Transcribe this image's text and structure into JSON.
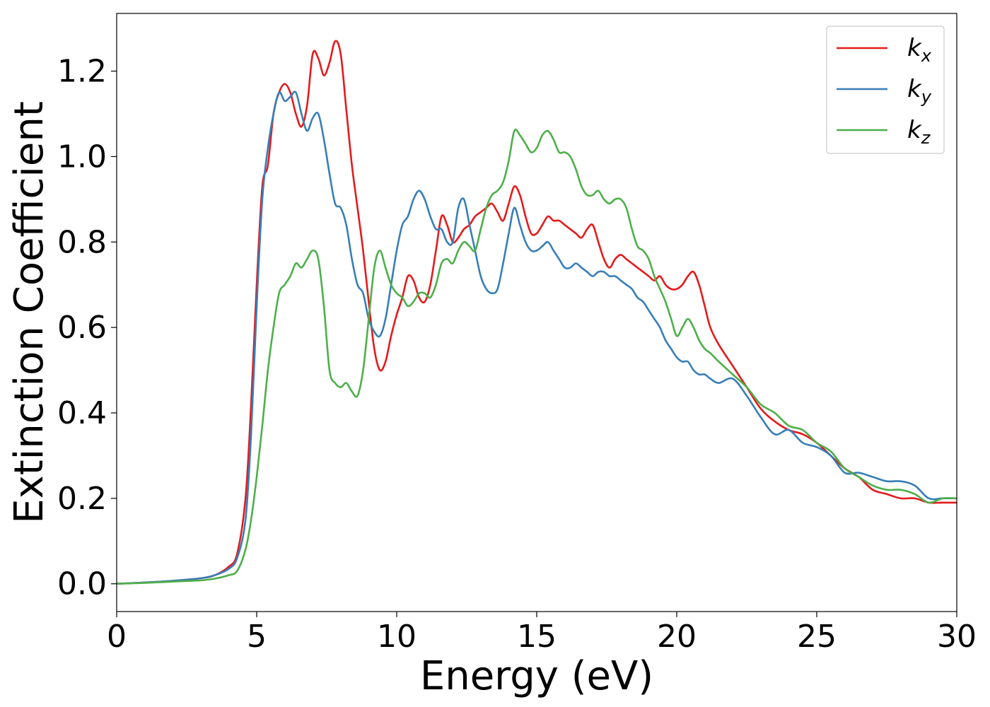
{
  "chart_data": {
    "type": "line",
    "title": "",
    "xlabel": "Energy (eV)",
    "ylabel": "Extinction Coefficient",
    "xlim": [
      0,
      30
    ],
    "ylim": [
      -0.065,
      1.335
    ],
    "xticks": [
      0,
      5,
      10,
      15,
      20,
      25,
      30
    ],
    "yticks": [
      0.0,
      0.2,
      0.4,
      0.6,
      0.8,
      1.0,
      1.2
    ],
    "xtick_labels": [
      "0",
      "5",
      "10",
      "15",
      "20",
      "25",
      "30"
    ],
    "ytick_labels": [
      "0.0",
      "0.2",
      "0.4",
      "0.6",
      "0.8",
      "1.0",
      "1.2"
    ],
    "grid": false,
    "legend_position": "top-right",
    "series": [
      {
        "name_base": "k",
        "name_sub": "x",
        "color": "#e41a1c",
        "x": [
          0,
          1,
          2,
          3,
          3.5,
          4,
          4.3,
          4.6,
          4.8,
          5,
          5.2,
          5.4,
          5.6,
          5.8,
          6,
          6.2,
          6.4,
          6.6,
          6.8,
          7,
          7.2,
          7.4,
          7.6,
          7.8,
          8,
          8.2,
          8.4,
          8.6,
          8.8,
          9,
          9.2,
          9.4,
          9.6,
          9.8,
          10,
          10.2,
          10.4,
          10.6,
          10.8,
          11,
          11.2,
          11.4,
          11.6,
          11.8,
          12,
          12.2,
          12.4,
          12.6,
          12.8,
          13,
          13.2,
          13.4,
          13.6,
          13.8,
          14,
          14.2,
          14.4,
          14.6,
          14.8,
          15,
          15.2,
          15.4,
          15.6,
          15.8,
          16,
          16.2,
          16.4,
          16.6,
          16.8,
          17,
          17.2,
          17.4,
          17.6,
          17.8,
          18,
          18.2,
          18.4,
          18.6,
          18.8,
          19,
          19.2,
          19.4,
          19.6,
          19.8,
          20,
          20.2,
          20.4,
          20.6,
          20.8,
          21,
          21.2,
          21.5,
          22,
          22.5,
          23,
          23.5,
          24,
          24.5,
          25,
          25.5,
          26,
          26.5,
          27,
          27.5,
          28,
          28.5,
          29,
          29.5,
          30
        ],
        "y": [
          0.0,
          0.003,
          0.007,
          0.013,
          0.02,
          0.04,
          0.07,
          0.2,
          0.42,
          0.7,
          0.93,
          0.98,
          1.1,
          1.15,
          1.17,
          1.15,
          1.1,
          1.07,
          1.12,
          1.24,
          1.23,
          1.19,
          1.22,
          1.27,
          1.24,
          1.11,
          0.98,
          0.88,
          0.78,
          0.66,
          0.55,
          0.5,
          0.52,
          0.58,
          0.63,
          0.67,
          0.72,
          0.71,
          0.67,
          0.66,
          0.7,
          0.78,
          0.86,
          0.84,
          0.8,
          0.81,
          0.83,
          0.84,
          0.86,
          0.87,
          0.88,
          0.89,
          0.87,
          0.85,
          0.89,
          0.93,
          0.91,
          0.86,
          0.82,
          0.82,
          0.84,
          0.86,
          0.85,
          0.85,
          0.84,
          0.83,
          0.82,
          0.81,
          0.83,
          0.84,
          0.8,
          0.76,
          0.74,
          0.76,
          0.77,
          0.76,
          0.75,
          0.74,
          0.73,
          0.72,
          0.71,
          0.72,
          0.7,
          0.69,
          0.69,
          0.7,
          0.72,
          0.73,
          0.7,
          0.65,
          0.6,
          0.56,
          0.51,
          0.46,
          0.41,
          0.38,
          0.36,
          0.35,
          0.33,
          0.3,
          0.27,
          0.25,
          0.22,
          0.21,
          0.2,
          0.2,
          0.19,
          0.19,
          0.19
        ]
      },
      {
        "name_base": "k",
        "name_sub": "y",
        "color": "#377eb8",
        "x": [
          0,
          1,
          2,
          3,
          3.5,
          4,
          4.3,
          4.6,
          4.8,
          5,
          5.2,
          5.4,
          5.6,
          5.8,
          6,
          6.2,
          6.4,
          6.6,
          6.8,
          7,
          7.2,
          7.4,
          7.6,
          7.8,
          8,
          8.2,
          8.4,
          8.6,
          8.8,
          9,
          9.2,
          9.4,
          9.6,
          9.8,
          10,
          10.2,
          10.4,
          10.6,
          10.8,
          11,
          11.2,
          11.4,
          11.6,
          11.8,
          12,
          12.2,
          12.4,
          12.6,
          12.8,
          13,
          13.2,
          13.4,
          13.6,
          13.8,
          14,
          14.2,
          14.4,
          14.6,
          14.8,
          15,
          15.2,
          15.4,
          15.6,
          15.8,
          16,
          16.2,
          16.4,
          16.6,
          16.8,
          17,
          17.2,
          17.4,
          17.6,
          17.8,
          18,
          18.2,
          18.4,
          18.6,
          18.8,
          19,
          19.2,
          19.4,
          19.6,
          19.8,
          20,
          20.2,
          20.4,
          20.6,
          20.8,
          21,
          21.2,
          21.5,
          22,
          22.5,
          23,
          23.5,
          24,
          24.5,
          25,
          25.5,
          26,
          26.5,
          27,
          27.5,
          28,
          28.5,
          29,
          29.5,
          30
        ],
        "y": [
          0.0,
          0.003,
          0.007,
          0.013,
          0.02,
          0.035,
          0.06,
          0.15,
          0.35,
          0.65,
          0.9,
          1.02,
          1.1,
          1.15,
          1.13,
          1.14,
          1.15,
          1.1,
          1.06,
          1.09,
          1.1,
          1.04,
          0.96,
          0.89,
          0.88,
          0.84,
          0.76,
          0.7,
          0.68,
          0.62,
          0.59,
          0.58,
          0.62,
          0.7,
          0.78,
          0.84,
          0.86,
          0.9,
          0.92,
          0.9,
          0.86,
          0.83,
          0.83,
          0.8,
          0.8,
          0.88,
          0.9,
          0.84,
          0.78,
          0.72,
          0.69,
          0.68,
          0.69,
          0.75,
          0.82,
          0.88,
          0.84,
          0.8,
          0.78,
          0.78,
          0.79,
          0.8,
          0.78,
          0.76,
          0.74,
          0.74,
          0.75,
          0.74,
          0.73,
          0.72,
          0.73,
          0.73,
          0.72,
          0.72,
          0.71,
          0.7,
          0.69,
          0.67,
          0.66,
          0.64,
          0.62,
          0.6,
          0.57,
          0.55,
          0.53,
          0.52,
          0.52,
          0.5,
          0.49,
          0.49,
          0.48,
          0.47,
          0.48,
          0.44,
          0.39,
          0.35,
          0.36,
          0.33,
          0.32,
          0.3,
          0.26,
          0.26,
          0.25,
          0.24,
          0.24,
          0.23,
          0.2,
          0.2,
          0.2
        ]
      },
      {
        "name_base": "k",
        "name_sub": "z",
        "color": "#4daf4a",
        "x": [
          0,
          1,
          2,
          3,
          3.5,
          4,
          4.3,
          4.6,
          4.8,
          5,
          5.2,
          5.4,
          5.6,
          5.8,
          6,
          6.2,
          6.4,
          6.6,
          6.8,
          7,
          7.2,
          7.4,
          7.6,
          7.8,
          8,
          8.2,
          8.4,
          8.6,
          8.8,
          9,
          9.2,
          9.4,
          9.6,
          9.8,
          10,
          10.2,
          10.4,
          10.6,
          10.8,
          11,
          11.2,
          11.4,
          11.6,
          11.8,
          12,
          12.2,
          12.4,
          12.6,
          12.8,
          13,
          13.2,
          13.4,
          13.6,
          13.8,
          14,
          14.2,
          14.4,
          14.6,
          14.8,
          15,
          15.2,
          15.4,
          15.6,
          15.8,
          16,
          16.2,
          16.4,
          16.6,
          16.8,
          17,
          17.2,
          17.4,
          17.6,
          17.8,
          18,
          18.2,
          18.4,
          18.6,
          18.8,
          19,
          19.2,
          19.4,
          19.6,
          19.8,
          20,
          20.2,
          20.4,
          20.6,
          20.8,
          21,
          21.2,
          21.5,
          22,
          22.5,
          23,
          23.5,
          24,
          24.5,
          25,
          25.5,
          26,
          26.5,
          27,
          27.5,
          28,
          28.5,
          29,
          29.5,
          30
        ],
        "y": [
          0.0,
          0.002,
          0.005,
          0.008,
          0.012,
          0.02,
          0.03,
          0.08,
          0.15,
          0.25,
          0.37,
          0.5,
          0.6,
          0.68,
          0.7,
          0.72,
          0.75,
          0.74,
          0.76,
          0.78,
          0.76,
          0.65,
          0.5,
          0.47,
          0.46,
          0.47,
          0.45,
          0.44,
          0.5,
          0.62,
          0.74,
          0.78,
          0.74,
          0.7,
          0.68,
          0.67,
          0.65,
          0.66,
          0.68,
          0.68,
          0.67,
          0.7,
          0.75,
          0.76,
          0.75,
          0.78,
          0.8,
          0.79,
          0.78,
          0.83,
          0.88,
          0.91,
          0.92,
          0.94,
          0.99,
          1.06,
          1.05,
          1.03,
          1.01,
          1.02,
          1.05,
          1.06,
          1.04,
          1.01,
          1.01,
          1.0,
          0.97,
          0.93,
          0.91,
          0.91,
          0.92,
          0.9,
          0.89,
          0.9,
          0.9,
          0.88,
          0.83,
          0.79,
          0.78,
          0.76,
          0.72,
          0.69,
          0.66,
          0.62,
          0.58,
          0.6,
          0.62,
          0.6,
          0.57,
          0.55,
          0.54,
          0.52,
          0.49,
          0.46,
          0.42,
          0.4,
          0.37,
          0.36,
          0.33,
          0.31,
          0.27,
          0.25,
          0.23,
          0.22,
          0.22,
          0.21,
          0.19,
          0.2,
          0.2
        ]
      }
    ]
  }
}
